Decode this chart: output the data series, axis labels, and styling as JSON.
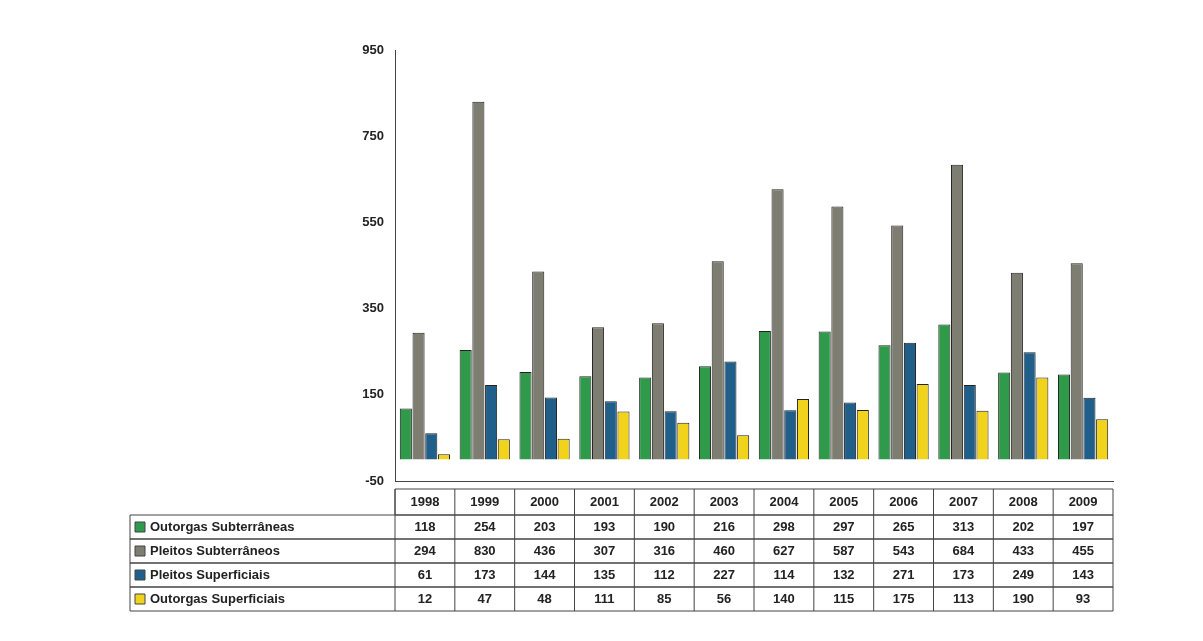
{
  "chart_data": {
    "type": "bar",
    "categories": [
      "1998",
      "1999",
      "2000",
      "2001",
      "2002",
      "2003",
      "2004",
      "2005",
      "2006",
      "2007",
      "2008",
      "2009"
    ],
    "series": [
      {
        "name": "Outorgas Subterrâneas",
        "color": "#2e9a4a",
        "values": [
          118,
          254,
          203,
          193,
          190,
          216,
          298,
          297,
          265,
          313,
          202,
          197
        ]
      },
      {
        "name": "Pleitos Subterrâneos",
        "color": "#7d7d72",
        "values": [
          294,
          830,
          436,
          307,
          316,
          460,
          627,
          587,
          543,
          684,
          433,
          455
        ]
      },
      {
        "name": "Pleitos Superficiais",
        "color": "#1f5f8a",
        "values": [
          61,
          173,
          144,
          135,
          112,
          227,
          114,
          132,
          271,
          173,
          249,
          143
        ]
      },
      {
        "name": "Outorgas Superficiais",
        "color": "#f2d31b",
        "values": [
          12,
          47,
          48,
          111,
          85,
          56,
          140,
          115,
          175,
          113,
          190,
          93
        ]
      }
    ],
    "ylim": [
      -50,
      950
    ],
    "yticks": [
      -50,
      150,
      350,
      550,
      750,
      950
    ],
    "grid": false,
    "legend": "bottom",
    "data_labels": true
  }
}
